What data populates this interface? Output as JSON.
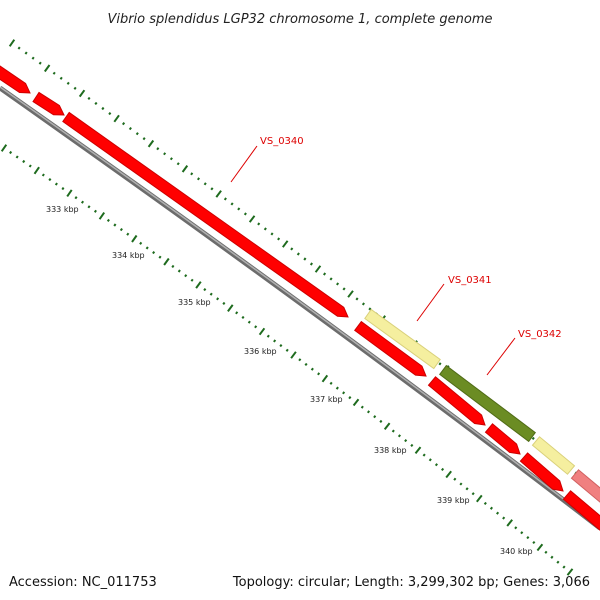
{
  "title": "Vibrio splendidus LGP32 chromosome 1, complete genome",
  "footer": {
    "accession": "Accession: NC_011753",
    "summary": "Topology: circular; Length: 3,299,302 bp; Genes: 3,066"
  },
  "ticks": [
    {
      "label": "333 kbp"
    },
    {
      "label": "334 kbp"
    },
    {
      "label": "335 kbp"
    },
    {
      "label": "336 kbp"
    },
    {
      "label": "337 kbp"
    },
    {
      "label": "338 kbp"
    },
    {
      "label": "339 kbp"
    },
    {
      "label": "340 kbp"
    }
  ],
  "gene_labels": [
    {
      "label": "VS_0340"
    },
    {
      "label": "VS_0341"
    },
    {
      "label": "VS_0342"
    }
  ],
  "colors": {
    "cds": "#ff0000",
    "cds_dark": "#cc0000",
    "pale": "#f5ef9f",
    "olive": "#6b8c23",
    "pink": "#f08080",
    "backbone": "#888888",
    "tick_green": "#1e6b1e",
    "label_red": "#dd0000"
  }
}
